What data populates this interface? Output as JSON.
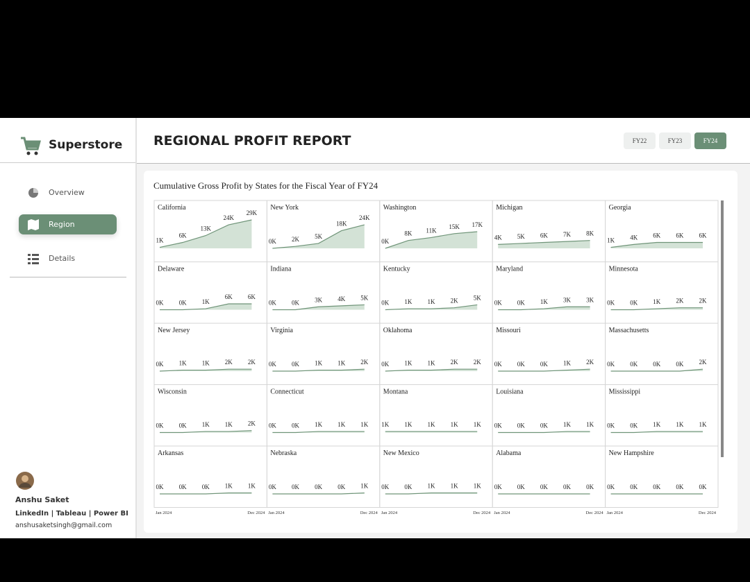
{
  "sidebar": {
    "brand": "Superstore",
    "nav": [
      "Overview",
      "Region",
      "Details"
    ],
    "profile": {
      "name": "Anshu Saket",
      "links": "LinkedIn | Tableau | Power BI",
      "email": "anshusaketsingh@gmail.com"
    }
  },
  "header": {
    "title": "REGIONAL PROFIT REPORT",
    "filters": [
      "FY22",
      "FY23",
      "FY24"
    ]
  },
  "chart_data": {
    "type": "area",
    "title": "Cumulative Gross Profit by States for the Fiscal Year of FY24",
    "x_start": "Jan 2024",
    "x_end": "Dec 2024",
    "color": "#6f9478",
    "panels": [
      {
        "name": "California",
        "values": [
          1,
          6,
          13,
          24,
          29
        ],
        "value_labels": [
          "1K",
          "6K",
          "13K",
          "24K",
          "29K"
        ]
      },
      {
        "name": "New York",
        "values": [
          0,
          2,
          5,
          18,
          24
        ],
        "value_labels": [
          "0K",
          "2K",
          "5K",
          "18K",
          "24K"
        ]
      },
      {
        "name": "Washington",
        "values": [
          0,
          8,
          11,
          15,
          17
        ],
        "value_labels": [
          "0K",
          "8K",
          "11K",
          "15K",
          "17K"
        ]
      },
      {
        "name": "Michigan",
        "values": [
          4,
          5,
          6,
          7,
          8
        ],
        "value_labels": [
          "4K",
          "5K",
          "6K",
          "7K",
          "8K"
        ]
      },
      {
        "name": "Georgia",
        "values": [
          1,
          4,
          6,
          6,
          6
        ],
        "value_labels": [
          "1K",
          "4K",
          "6K",
          "6K",
          "6K"
        ]
      },
      {
        "name": "Delaware",
        "values": [
          0,
          0,
          1,
          6,
          6
        ],
        "value_labels": [
          "0K",
          "0K",
          "1K",
          "6K",
          "6K"
        ]
      },
      {
        "name": "Indiana",
        "values": [
          0,
          0,
          3,
          4,
          5
        ],
        "value_labels": [
          "0K",
          "0K",
          "3K",
          "4K",
          "5K"
        ]
      },
      {
        "name": "Kentucky",
        "values": [
          0,
          1,
          1,
          2,
          5
        ],
        "value_labels": [
          "0K",
          "1K",
          "1K",
          "2K",
          "5K"
        ]
      },
      {
        "name": "Maryland",
        "values": [
          0,
          0,
          1,
          3,
          3
        ],
        "value_labels": [
          "0K",
          "0K",
          "1K",
          "3K",
          "3K"
        ]
      },
      {
        "name": "Minnesota",
        "values": [
          0,
          0,
          1,
          2,
          2
        ],
        "value_labels": [
          "0K",
          "0K",
          "1K",
          "2K",
          "2K"
        ]
      },
      {
        "name": "New Jersey",
        "values": [
          0,
          1,
          1,
          2,
          2
        ],
        "value_labels": [
          "0K",
          "1K",
          "1K",
          "2K",
          "2K"
        ]
      },
      {
        "name": "Virginia",
        "values": [
          0,
          0,
          1,
          1,
          2
        ],
        "value_labels": [
          "0K",
          "0K",
          "1K",
          "1K",
          "2K"
        ]
      },
      {
        "name": "Oklahoma",
        "values": [
          0,
          1,
          1,
          2,
          2
        ],
        "value_labels": [
          "0K",
          "1K",
          "1K",
          "2K",
          "2K"
        ]
      },
      {
        "name": "Missouri",
        "values": [
          0,
          0,
          0,
          1,
          2
        ],
        "value_labels": [
          "0K",
          "0K",
          "0K",
          "1K",
          "2K"
        ]
      },
      {
        "name": "Massachusetts",
        "values": [
          0,
          0,
          0,
          0,
          2
        ],
        "value_labels": [
          "0K",
          "0K",
          "0K",
          "0K",
          "2K"
        ]
      },
      {
        "name": "Wisconsin",
        "values": [
          0,
          0,
          1,
          1,
          2
        ],
        "value_labels": [
          "0K",
          "0K",
          "1K",
          "1K",
          "2K"
        ]
      },
      {
        "name": "Connecticut",
        "values": [
          0,
          0,
          1,
          1,
          1
        ],
        "value_labels": [
          "0K",
          "0K",
          "1K",
          "1K",
          "1K"
        ]
      },
      {
        "name": "Montana",
        "values": [
          1,
          1,
          1,
          1,
          1
        ],
        "value_labels": [
          "1K",
          "1K",
          "1K",
          "1K",
          "1K"
        ]
      },
      {
        "name": "Louisiana",
        "values": [
          0,
          0,
          0,
          1,
          1
        ],
        "value_labels": [
          "0K",
          "0K",
          "0K",
          "1K",
          "1K"
        ]
      },
      {
        "name": "Mississippi",
        "values": [
          0,
          0,
          1,
          1,
          1
        ],
        "value_labels": [
          "0K",
          "0K",
          "1K",
          "1K",
          "1K"
        ]
      },
      {
        "name": "Arkansas",
        "values": [
          0,
          0,
          0,
          1,
          1
        ],
        "value_labels": [
          "0K",
          "0K",
          "0K",
          "1K",
          "1K"
        ]
      },
      {
        "name": "Nebraska",
        "values": [
          0,
          0,
          0,
          0,
          1
        ],
        "value_labels": [
          "0K",
          "0K",
          "0K",
          "0K",
          "1K"
        ]
      },
      {
        "name": "New Mexico",
        "values": [
          0,
          0,
          1,
          1,
          1
        ],
        "value_labels": [
          "0K",
          "0K",
          "1K",
          "1K",
          "1K"
        ]
      },
      {
        "name": "Alabama",
        "values": [
          0,
          0,
          0,
          0,
          0
        ],
        "value_labels": [
          "0K",
          "0K",
          "0K",
          "0K",
          "0K"
        ]
      },
      {
        "name": "New Hampshire",
        "values": [
          0,
          0,
          0,
          0,
          0
        ],
        "value_labels": [
          "0K",
          "0K",
          "0K",
          "0K",
          "0K"
        ]
      }
    ]
  }
}
